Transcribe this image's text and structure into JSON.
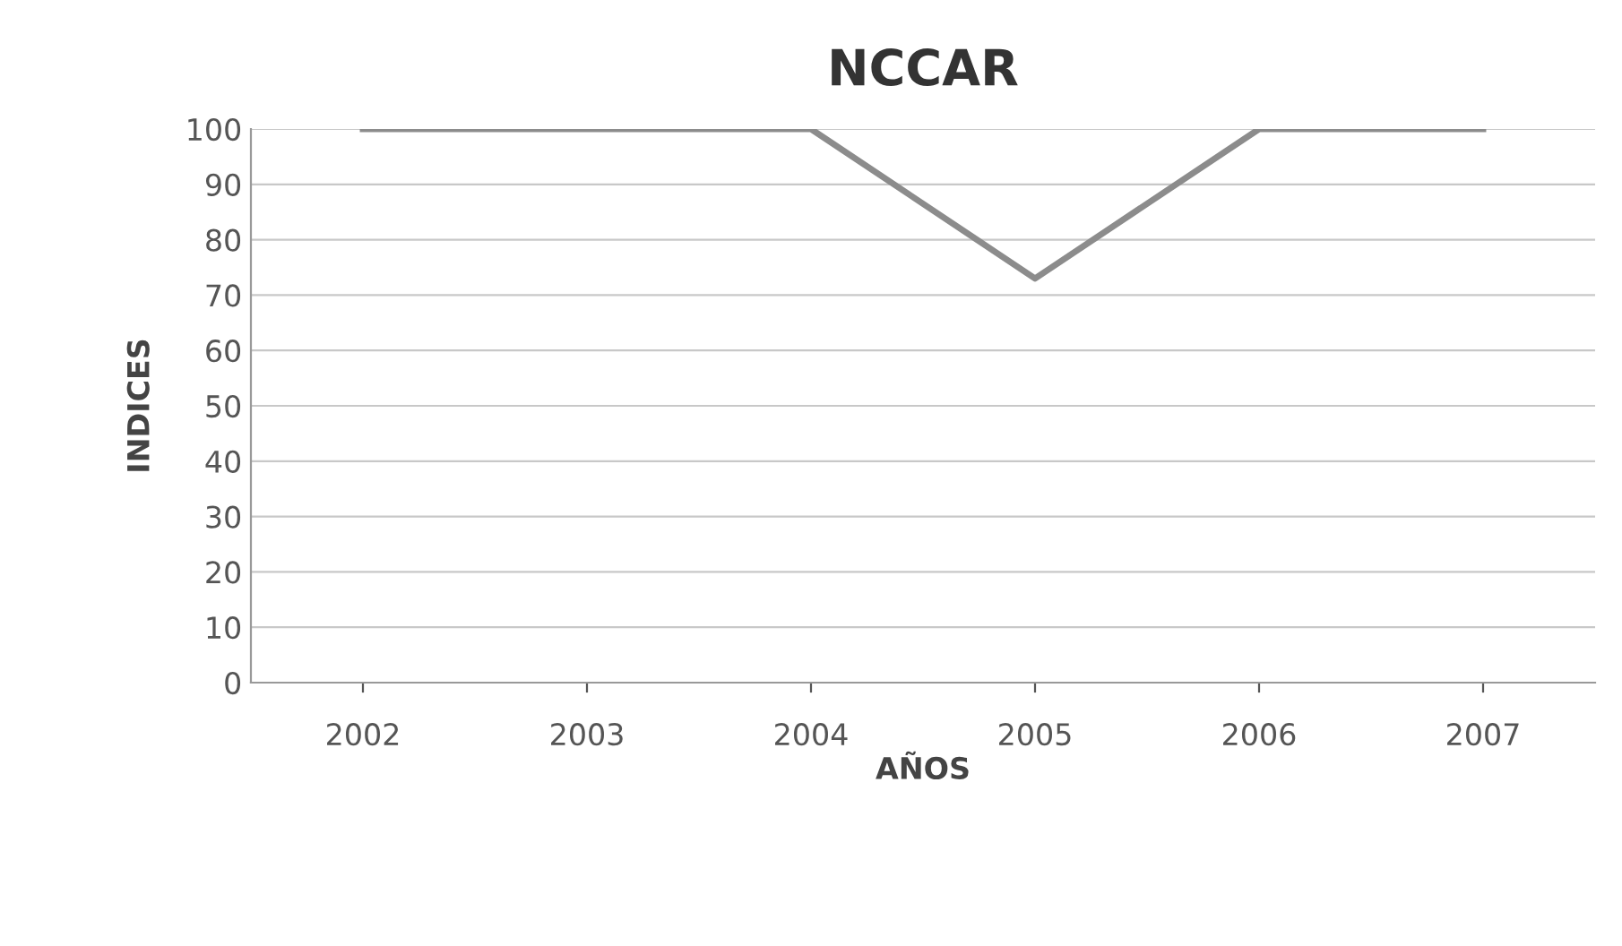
{
  "chart_data": {
    "type": "line",
    "title": "NCCAR",
    "xlabel": "AÑOS",
    "ylabel": "INDICES",
    "categories": [
      "2002",
      "2003",
      "2004",
      "2005",
      "2006",
      "2007"
    ],
    "series": [
      {
        "color": "#8c8c8c",
        "values": [
          100,
          100,
          100,
          73,
          100,
          100
        ]
      }
    ],
    "ylim": [
      0,
      100
    ],
    "yticks": [
      0,
      10,
      20,
      30,
      40,
      50,
      60,
      70,
      80,
      90,
      100
    ],
    "grid": "y",
    "legend": false,
    "marker": "none",
    "line_style": "solid"
  }
}
